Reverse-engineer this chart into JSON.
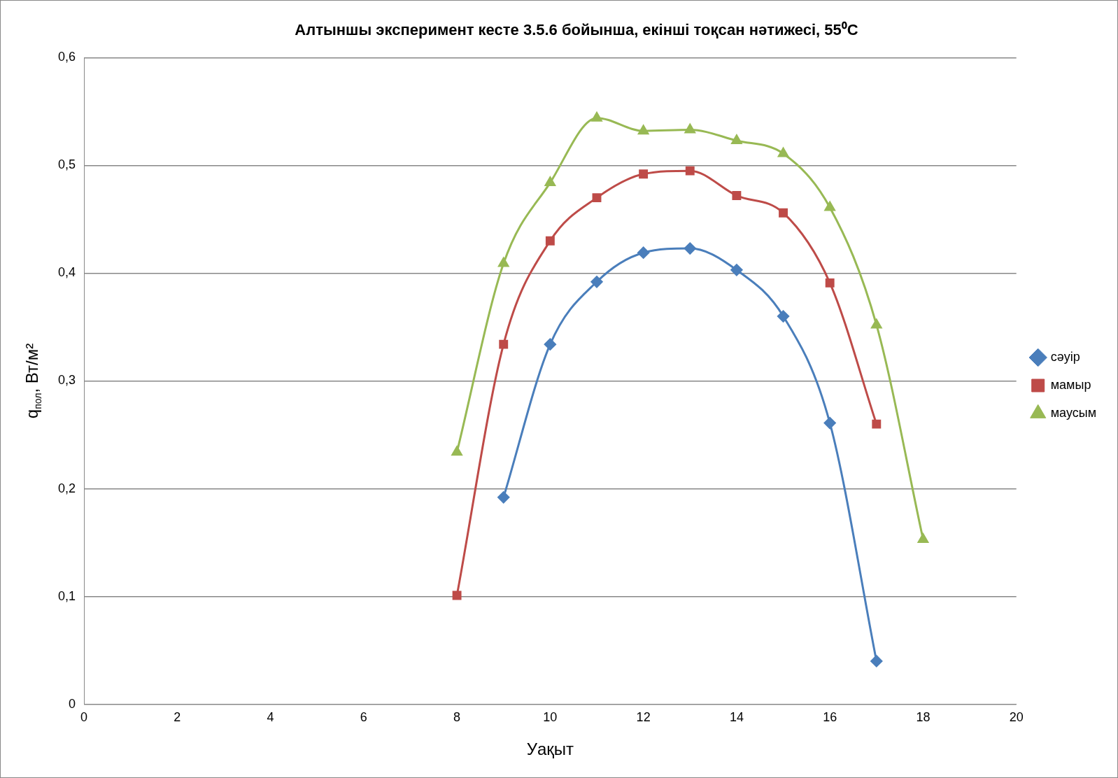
{
  "chart_data": {
    "type": "line",
    "title": "Алтыншы эксперимент кесте 3.5.6 бойынша, екінші тоқсан нәтижесі, 55⁰С",
    "xlabel": "Уақыт",
    "ylabel": "q$_{пол}$, Вт/м²",
    "xlim": [
      0,
      20
    ],
    "xticks": [
      0,
      2,
      4,
      6,
      8,
      10,
      12,
      14,
      16,
      18,
      20
    ],
    "ylim": [
      0,
      0.6
    ],
    "yticks": [
      {
        "value": 0,
        "label": "0"
      },
      {
        "value": 0.1,
        "label": "0,1"
      },
      {
        "value": 0.2,
        "label": "0,2"
      },
      {
        "value": 0.3,
        "label": "0,3"
      },
      {
        "value": 0.4,
        "label": "0,4"
      },
      {
        "value": 0.5,
        "label": "0,5"
      },
      {
        "value": 0.6,
        "label": "0,6"
      }
    ],
    "grid": "y",
    "legend": "right",
    "line_style": "solid",
    "series": [
      {
        "name": "сәуір",
        "color": "#4a7ebb",
        "marker": "diamond",
        "x": [
          9,
          10,
          11,
          12,
          13,
          14,
          15,
          16,
          17
        ],
        "values": [
          0.192,
          0.334,
          0.392,
          0.419,
          0.423,
          0.403,
          0.36,
          0.261,
          0.04
        ]
      },
      {
        "name": "мамыр",
        "color": "#be4b48",
        "marker": "square",
        "x": [
          8,
          9,
          10,
          11,
          12,
          13,
          14,
          15,
          16,
          17
        ],
        "values": [
          0.101,
          0.334,
          0.43,
          0.47,
          0.492,
          0.495,
          0.472,
          0.456,
          0.391,
          0.26
        ]
      },
      {
        "name": "маусым",
        "color": "#98b954",
        "marker": "triangle",
        "x": [
          8,
          9,
          10,
          11,
          12,
          13,
          14,
          15,
          16,
          17,
          18
        ],
        "values": [
          0.234,
          0.409,
          0.484,
          0.544,
          0.532,
          0.533,
          0.523,
          0.511,
          0.461,
          0.352,
          0.153
        ]
      }
    ]
  }
}
